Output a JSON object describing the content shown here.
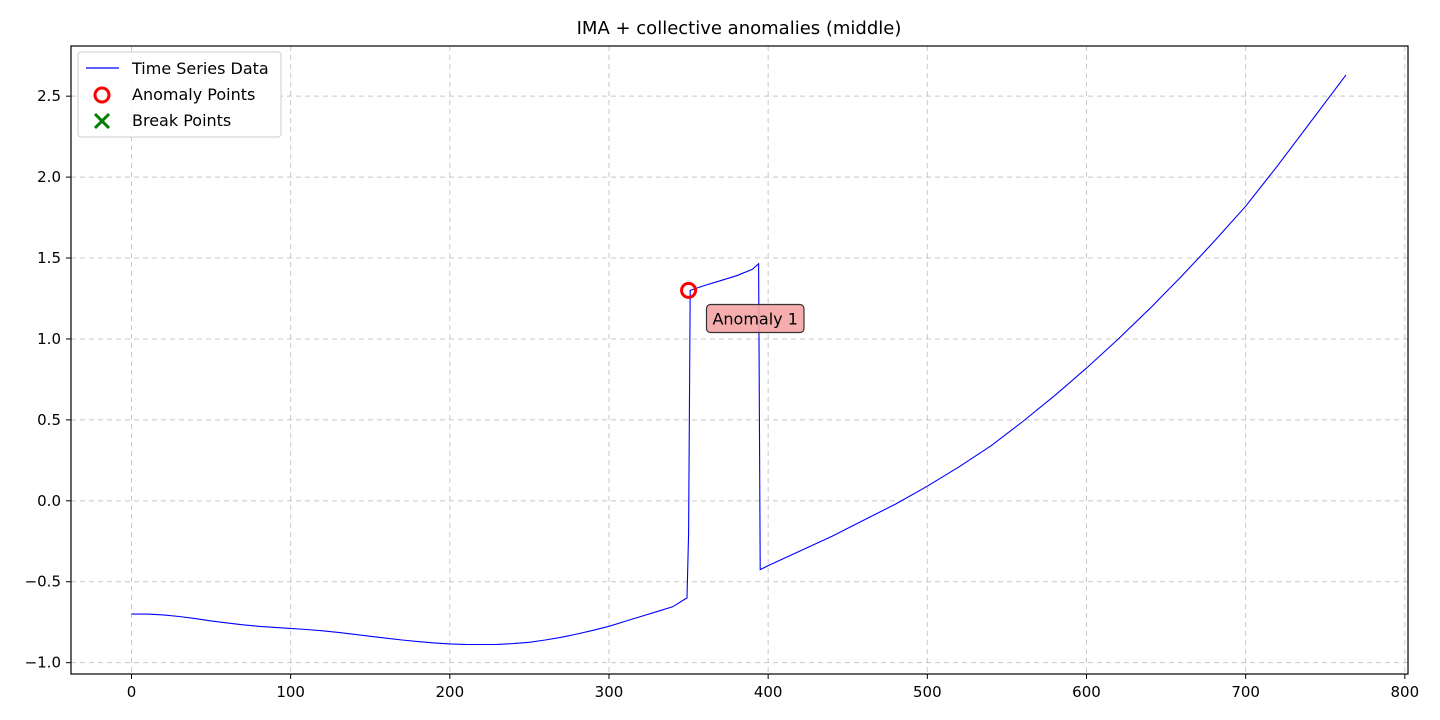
{
  "chart_data": {
    "type": "line",
    "title": "IMA + collective anomalies (middle)",
    "xlabel": "",
    "ylabel": "",
    "xlim": [
      -38,
      802
    ],
    "ylim": [
      -1.07,
      2.81
    ],
    "xticks": [
      0,
      100,
      200,
      300,
      400,
      500,
      600,
      700,
      800
    ],
    "xtick_labels": [
      "0",
      "100",
      "200",
      "300",
      "400",
      "500",
      "600",
      "700",
      "800"
    ],
    "yticks": [
      -1.0,
      -0.5,
      0.0,
      0.5,
      1.0,
      1.5,
      2.0,
      2.5
    ],
    "ytick_labels": [
      "−1.0",
      "−0.5",
      "0.0",
      "0.5",
      "1.0",
      "1.5",
      "2.0",
      "2.5"
    ],
    "grid": true,
    "legend_position": "upper-left",
    "series": [
      {
        "name": "Time Series Data",
        "color": "#0000ff",
        "x": [
          0,
          10,
          20,
          30,
          40,
          50,
          60,
          70,
          80,
          90,
          100,
          110,
          120,
          130,
          140,
          150,
          160,
          170,
          180,
          190,
          200,
          210,
          220,
          230,
          240,
          250,
          260,
          270,
          280,
          290,
          300,
          310,
          320,
          330,
          340,
          349,
          350,
          351,
          360,
          370,
          380,
          390,
          394,
          395,
          400,
          420,
          440,
          460,
          480,
          500,
          520,
          540,
          560,
          580,
          600,
          620,
          640,
          660,
          680,
          700,
          720,
          740,
          763
        ],
        "y": [
          -0.7,
          -0.7,
          -0.705,
          -0.715,
          -0.728,
          -0.742,
          -0.754,
          -0.766,
          -0.775,
          -0.782,
          -0.788,
          -0.795,
          -0.803,
          -0.813,
          -0.825,
          -0.837,
          -0.849,
          -0.86,
          -0.87,
          -0.878,
          -0.884,
          -0.887,
          -0.888,
          -0.887,
          -0.882,
          -0.874,
          -0.86,
          -0.843,
          -0.823,
          -0.8,
          -0.775,
          -0.745,
          -0.715,
          -0.685,
          -0.655,
          -0.6,
          -0.2,
          1.3,
          1.33,
          1.36,
          1.39,
          1.43,
          1.465,
          -0.425,
          -0.4,
          -0.31,
          -0.22,
          -0.12,
          -0.02,
          0.09,
          0.21,
          0.34,
          0.49,
          0.65,
          0.82,
          1.0,
          1.19,
          1.39,
          1.6,
          1.82,
          2.07,
          2.33,
          2.63
        ]
      }
    ],
    "anomaly_points": {
      "name": "Anomaly Points",
      "color": "#ff0000",
      "points": [
        {
          "x": 350,
          "y": 1.3
        }
      ]
    },
    "break_points": {
      "name": "Break Points",
      "color": "#008000",
      "points": []
    },
    "annotations": [
      {
        "text": "Anomaly 1",
        "x": 360,
        "y": 1.12,
        "bg": "#f4a4a4"
      }
    ]
  }
}
